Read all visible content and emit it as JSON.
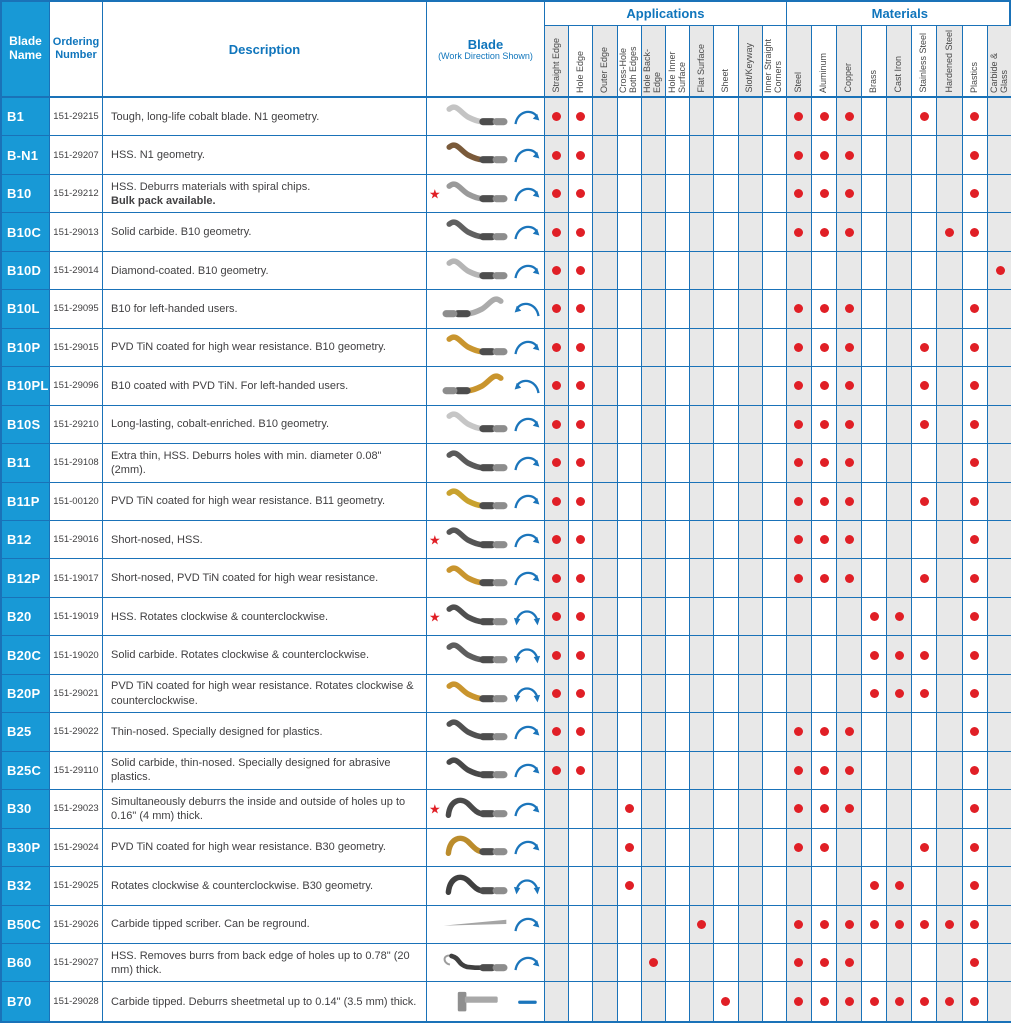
{
  "header": {
    "blade_name": "Blade Name",
    "ordering_number": "Ordering Number",
    "description": "Description",
    "blade_title": "Blade",
    "blade_subtitle": "(Work Direction Shown)",
    "applications_label": "Applications",
    "materials_label": "Materials",
    "application_columns": [
      "Straight Edge",
      "Hole Edge",
      "Outer Edge",
      "Cross-Hole Both Edges",
      "Hole Back-Edge",
      "Hole Inner Surface",
      "Flat Surface",
      "Sheet",
      "Slot/Keyway",
      "Inner Straight Corners"
    ],
    "material_columns": [
      "Steel",
      "Aluminum",
      "Copper",
      "Brass",
      "Cast Iron",
      "Stainless Steel",
      "Hardened Steel",
      "Plastics",
      "Carbide & Glass"
    ]
  },
  "colors": {
    "header_blue": "#1899d6",
    "grid_blue": "#1a72b8",
    "header_text_blue": "#0f75bc",
    "dot_red": "#e01f26",
    "arrow_blue": "#1b75bb",
    "column_shade": "#e8e8e8",
    "body_text": "#414042"
  },
  "icons": {
    "star-icon": "★"
  },
  "rows": [
    {
      "name": "B1",
      "order": "151-29215",
      "desc": "Tough, long-life cobalt blade. N1 geometry.",
      "note": "",
      "star": false,
      "blade_shape": "s-curve",
      "blade_color": "#c4c4c4",
      "arrow": "cw",
      "applications": [
        "Straight Edge",
        "Hole Edge"
      ],
      "materials": [
        "Steel",
        "Aluminum",
        "Copper",
        "Stainless Steel",
        "Plastics"
      ]
    },
    {
      "name": "B-N1",
      "order": "151-29207",
      "desc": "HSS. N1 geometry.",
      "note": "",
      "star": false,
      "blade_shape": "s-curve",
      "blade_color": "#7a5a3a",
      "arrow": "cw",
      "applications": [
        "Straight Edge",
        "Hole Edge"
      ],
      "materials": [
        "Steel",
        "Aluminum",
        "Copper",
        "Plastics"
      ]
    },
    {
      "name": "B10",
      "order": "151-29212",
      "desc": "HSS. Deburrs materials with spiral chips.",
      "note": "Bulk pack available.",
      "star": true,
      "blade_shape": "s-curve",
      "blade_color": "#9a9a9a",
      "arrow": "cw",
      "applications": [
        "Straight Edge",
        "Hole Edge"
      ],
      "materials": [
        "Steel",
        "Aluminum",
        "Copper",
        "Plastics"
      ]
    },
    {
      "name": "B10C",
      "order": "151-29013",
      "desc": "Solid carbide. B10 geometry.",
      "note": "",
      "star": false,
      "blade_shape": "s-curve",
      "blade_color": "#616161",
      "arrow": "cw",
      "applications": [
        "Straight Edge",
        "Hole Edge"
      ],
      "materials": [
        "Steel",
        "Aluminum",
        "Copper",
        "Hardened Steel",
        "Plastics"
      ]
    },
    {
      "name": "B10D",
      "order": "151-29014",
      "desc": "Diamond-coated. B10 geometry.",
      "note": "",
      "star": false,
      "blade_shape": "s-curve",
      "blade_color": "#b5b5b5",
      "arrow": "cw",
      "applications": [
        "Straight Edge",
        "Hole Edge"
      ],
      "materials": [
        "Carbide & Glass"
      ]
    },
    {
      "name": "B10L",
      "order": "151-29095",
      "desc": "B10 for left-handed users.",
      "note": "",
      "star": false,
      "blade_shape": "s-curve-left",
      "blade_color": "#ababab",
      "arrow": "ccw",
      "applications": [
        "Straight Edge",
        "Hole Edge"
      ],
      "materials": [
        "Steel",
        "Aluminum",
        "Copper",
        "Plastics"
      ]
    },
    {
      "name": "B10P",
      "order": "151-29015",
      "desc": "PVD TiN coated for high wear resistance. B10 geometry.",
      "note": "",
      "star": false,
      "blade_shape": "s-curve",
      "blade_color": "#c9952e",
      "arrow": "cw",
      "applications": [
        "Straight Edge",
        "Hole Edge"
      ],
      "materials": [
        "Steel",
        "Aluminum",
        "Copper",
        "Stainless Steel",
        "Plastics"
      ]
    },
    {
      "name": "B10PL",
      "order": "151-29096",
      "desc": "B10 coated with PVD TiN. For left-handed users.",
      "note": "",
      "star": false,
      "blade_shape": "s-curve-left",
      "blade_color": "#c9952e",
      "arrow": "ccw",
      "applications": [
        "Straight Edge",
        "Hole Edge"
      ],
      "materials": [
        "Steel",
        "Aluminum",
        "Copper",
        "Stainless Steel",
        "Plastics"
      ]
    },
    {
      "name": "B10S",
      "order": "151-29210",
      "desc": "Long-lasting, cobalt-enriched. B10 geometry.",
      "note": "",
      "star": false,
      "blade_shape": "s-curve",
      "blade_color": "#c6c6c6",
      "arrow": "cw",
      "applications": [
        "Straight Edge",
        "Hole Edge"
      ],
      "materials": [
        "Steel",
        "Aluminum",
        "Copper",
        "Stainless Steel",
        "Plastics"
      ]
    },
    {
      "name": "B11",
      "order": "151-29108",
      "desc": "Extra thin, HSS. Deburrs holes with min. diameter 0.08\" (2mm).",
      "note": "",
      "star": false,
      "blade_shape": "s-curve",
      "blade_color": "#5a5a5a",
      "arrow": "cw",
      "applications": [
        "Straight Edge",
        "Hole Edge"
      ],
      "materials": [
        "Steel",
        "Aluminum",
        "Copper",
        "Plastics"
      ]
    },
    {
      "name": "B11P",
      "order": "151-00120",
      "desc": "PVD TiN coated for high wear resistance. B11 geometry.",
      "note": "",
      "star": false,
      "blade_shape": "s-curve",
      "blade_color": "#c9a22e",
      "arrow": "cw",
      "applications": [
        "Straight Edge",
        "Hole Edge"
      ],
      "materials": [
        "Steel",
        "Aluminum",
        "Copper",
        "Stainless Steel",
        "Plastics"
      ]
    },
    {
      "name": "B12",
      "order": "151-29016",
      "desc": "Short-nosed, HSS.",
      "note": "",
      "star": true,
      "blade_shape": "s-curve",
      "blade_color": "#565656",
      "arrow": "cw",
      "applications": [
        "Straight Edge",
        "Hole Edge"
      ],
      "materials": [
        "Steel",
        "Aluminum",
        "Copper",
        "Plastics"
      ]
    },
    {
      "name": "B12P",
      "order": "151-19017",
      "desc": "Short-nosed, PVD TiN coated for high wear resistance.",
      "note": "",
      "star": false,
      "blade_shape": "s-curve",
      "blade_color": "#c9952e",
      "arrow": "cw",
      "applications": [
        "Straight Edge",
        "Hole Edge"
      ],
      "materials": [
        "Steel",
        "Aluminum",
        "Copper",
        "Stainless Steel",
        "Plastics"
      ]
    },
    {
      "name": "B20",
      "order": "151-19019",
      "desc": "HSS. Rotates clockwise & counterclockwise.",
      "note": "",
      "star": true,
      "blade_shape": "s-curve",
      "blade_color": "#4f4f4f",
      "arrow": "double",
      "applications": [
        "Straight Edge",
        "Hole Edge"
      ],
      "materials": [
        "Brass",
        "Cast Iron",
        "Plastics"
      ]
    },
    {
      "name": "B20C",
      "order": "151-19020",
      "desc": "Solid carbide. Rotates clockwise & counterclockwise.",
      "note": "",
      "star": false,
      "blade_shape": "s-curve",
      "blade_color": "#5e5e5e",
      "arrow": "double",
      "applications": [
        "Straight Edge",
        "Hole Edge"
      ],
      "materials": [
        "Brass",
        "Cast Iron",
        "Stainless Steel",
        "Plastics"
      ]
    },
    {
      "name": "B20P",
      "order": "151-29021",
      "desc": "PVD TiN coated for high wear resistance. Rotates clockwise & counterclockwise.",
      "note": "",
      "star": false,
      "blade_shape": "s-curve",
      "blade_color": "#c9952e",
      "arrow": "double",
      "applications": [
        "Straight Edge",
        "Hole Edge"
      ],
      "materials": [
        "Brass",
        "Cast Iron",
        "Stainless Steel",
        "Plastics"
      ]
    },
    {
      "name": "B25",
      "order": "151-29022",
      "desc": "Thin-nosed. Specially designed for plastics.",
      "note": "",
      "star": false,
      "blade_shape": "s-curve",
      "blade_color": "#515151",
      "arrow": "cw",
      "applications": [
        "Straight Edge",
        "Hole Edge"
      ],
      "materials": [
        "Steel",
        "Aluminum",
        "Copper",
        "Plastics"
      ]
    },
    {
      "name": "B25C",
      "order": "151-29110",
      "desc": "Solid carbide, thin-nosed. Specially designed for abrasive plastics.",
      "note": "",
      "star": false,
      "blade_shape": "s-curve",
      "blade_color": "#484848",
      "arrow": "cw",
      "applications": [
        "Straight Edge",
        "Hole Edge"
      ],
      "materials": [
        "Steel",
        "Aluminum",
        "Copper",
        "Plastics"
      ]
    },
    {
      "name": "B30",
      "order": "151-29023",
      "desc": "Simultaneously deburrs the inside and outside of holes up to 0.16\" (4 mm) thick.",
      "note": "",
      "star": true,
      "blade_shape": "hump",
      "blade_color": "#4a4a4a",
      "arrow": "cw",
      "applications": [
        "Cross-Hole Both Edges"
      ],
      "materials": [
        "Steel",
        "Aluminum",
        "Copper",
        "Plastics"
      ]
    },
    {
      "name": "B30P",
      "order": "151-29024",
      "desc": "PVD TiN coated for high wear resistance. B30 geometry.",
      "note": "",
      "star": false,
      "blade_shape": "hump",
      "blade_color": "#bb8c2c",
      "arrow": "cw",
      "applications": [
        "Cross-Hole Both Edges"
      ],
      "materials": [
        "Steel",
        "Aluminum",
        "Stainless Steel",
        "Plastics"
      ]
    },
    {
      "name": "B32",
      "order": "151-29025",
      "desc": "Rotates clockwise & counterclockwise. B30 geometry.",
      "note": "",
      "star": false,
      "blade_shape": "hump",
      "blade_color": "#404040",
      "arrow": "double",
      "applications": [
        "Cross-Hole Both Edges"
      ],
      "materials": [
        "Brass",
        "Cast Iron",
        "Plastics"
      ]
    },
    {
      "name": "B50C",
      "order": "151-29026",
      "desc": "Carbide tipped scriber. Can be reground.",
      "note": "",
      "star": false,
      "blade_shape": "scriber",
      "blade_color": "#a5a5a5",
      "arrow": "cw",
      "applications": [
        "Flat Surface"
      ],
      "materials": [
        "Steel",
        "Aluminum",
        "Copper",
        "Brass",
        "Cast Iron",
        "Stainless Steel",
        "Hardened Steel",
        "Plastics"
      ]
    },
    {
      "name": "B60",
      "order": "151-29027",
      "desc": "HSS. Removes burrs from back edge of holes up to 0.78\" (20 mm) thick.",
      "note": "",
      "star": false,
      "blade_shape": "hook",
      "blade_color": "#3f3f3f",
      "arrow": "cw",
      "applications": [
        "Hole Back-Edge"
      ],
      "materials": [
        "Steel",
        "Aluminum",
        "Copper",
        "Plastics"
      ]
    },
    {
      "name": "B70",
      "order": "151-29028",
      "desc": "Carbide tipped. Deburrs sheetmetal up to 0.14\" (3.5 mm) thick.",
      "note": "",
      "star": false,
      "blade_shape": "l-shape",
      "blade_color": "#8f8f8f",
      "arrow": "dash",
      "applications": [
        "Sheet"
      ],
      "materials": [
        "Steel",
        "Aluminum",
        "Copper",
        "Brass",
        "Cast Iron",
        "Stainless Steel",
        "Hardened Steel",
        "Plastics"
      ]
    }
  ]
}
